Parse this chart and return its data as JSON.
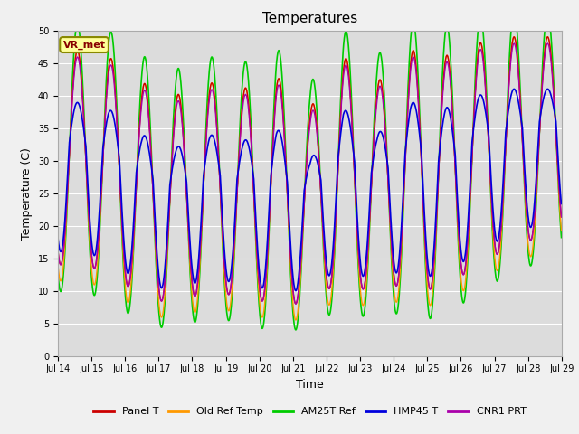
{
  "title": "Temperatures",
  "xlabel": "Time",
  "ylabel": "Temperature (C)",
  "ylim": [
    0,
    50
  ],
  "yticks": [
    0,
    5,
    10,
    15,
    20,
    25,
    30,
    35,
    40,
    45,
    50
  ],
  "annotation": "VR_met",
  "series_names": [
    "Panel T",
    "Old Ref Temp",
    "AM25T Ref",
    "HMP45 T",
    "CNR1 PRT"
  ],
  "series_colors": [
    "#cc0000",
    "#ff9900",
    "#00cc00",
    "#0000dd",
    "#aa00aa"
  ],
  "series_lw": [
    1.0,
    1.0,
    1.2,
    1.2,
    1.0
  ],
  "plot_bg": "#dcdcdc",
  "fig_bg": "#f0f0f0",
  "n_days": 15,
  "start_day": 14,
  "samples_per_day": 144,
  "grid_color": "#ffffff",
  "tick_fontsize": 7,
  "label_fontsize": 9,
  "title_fontsize": 11
}
